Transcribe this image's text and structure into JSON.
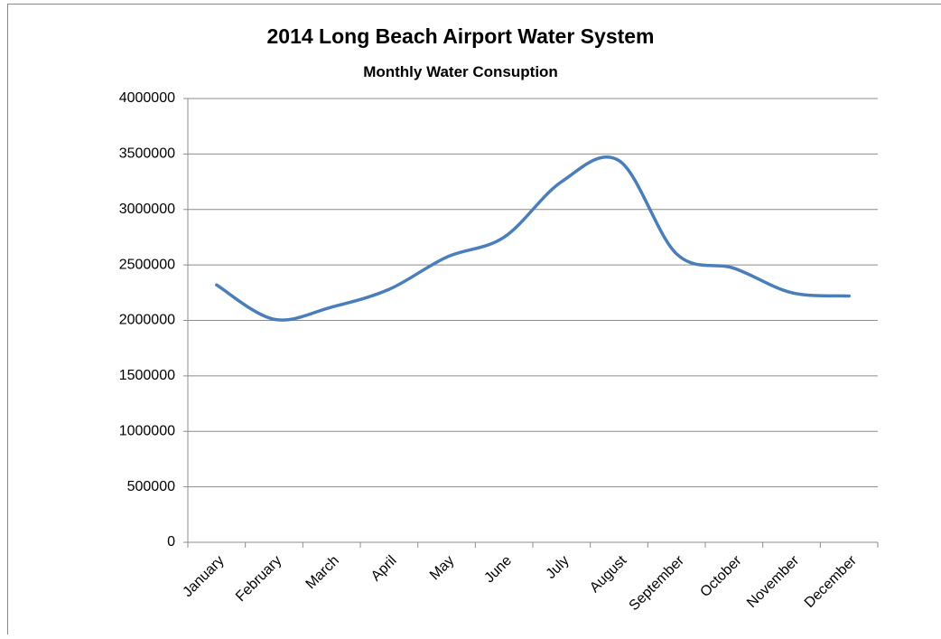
{
  "chart_data": {
    "type": "line",
    "title": "2014 Long Beach Airport Water System",
    "subtitle": "Monthly Water Consuption",
    "categories": [
      "January",
      "February",
      "March",
      "April",
      "May",
      "June",
      "July",
      "August",
      "September",
      "October",
      "November",
      "December"
    ],
    "series": [
      {
        "name": "Monthly Water Consuption",
        "color": "#4a7ebb",
        "values": [
          2320000,
          2010000,
          2120000,
          2280000,
          2570000,
          2750000,
          3250000,
          3440000,
          2600000,
          2470000,
          2250000,
          2220000
        ]
      }
    ],
    "ylim": [
      0,
      4000000
    ],
    "yticks": [
      0,
      500000,
      1000000,
      1500000,
      2000000,
      2500000,
      3000000,
      3500000,
      4000000
    ],
    "grid": true,
    "smooth": true,
    "legend": false
  }
}
